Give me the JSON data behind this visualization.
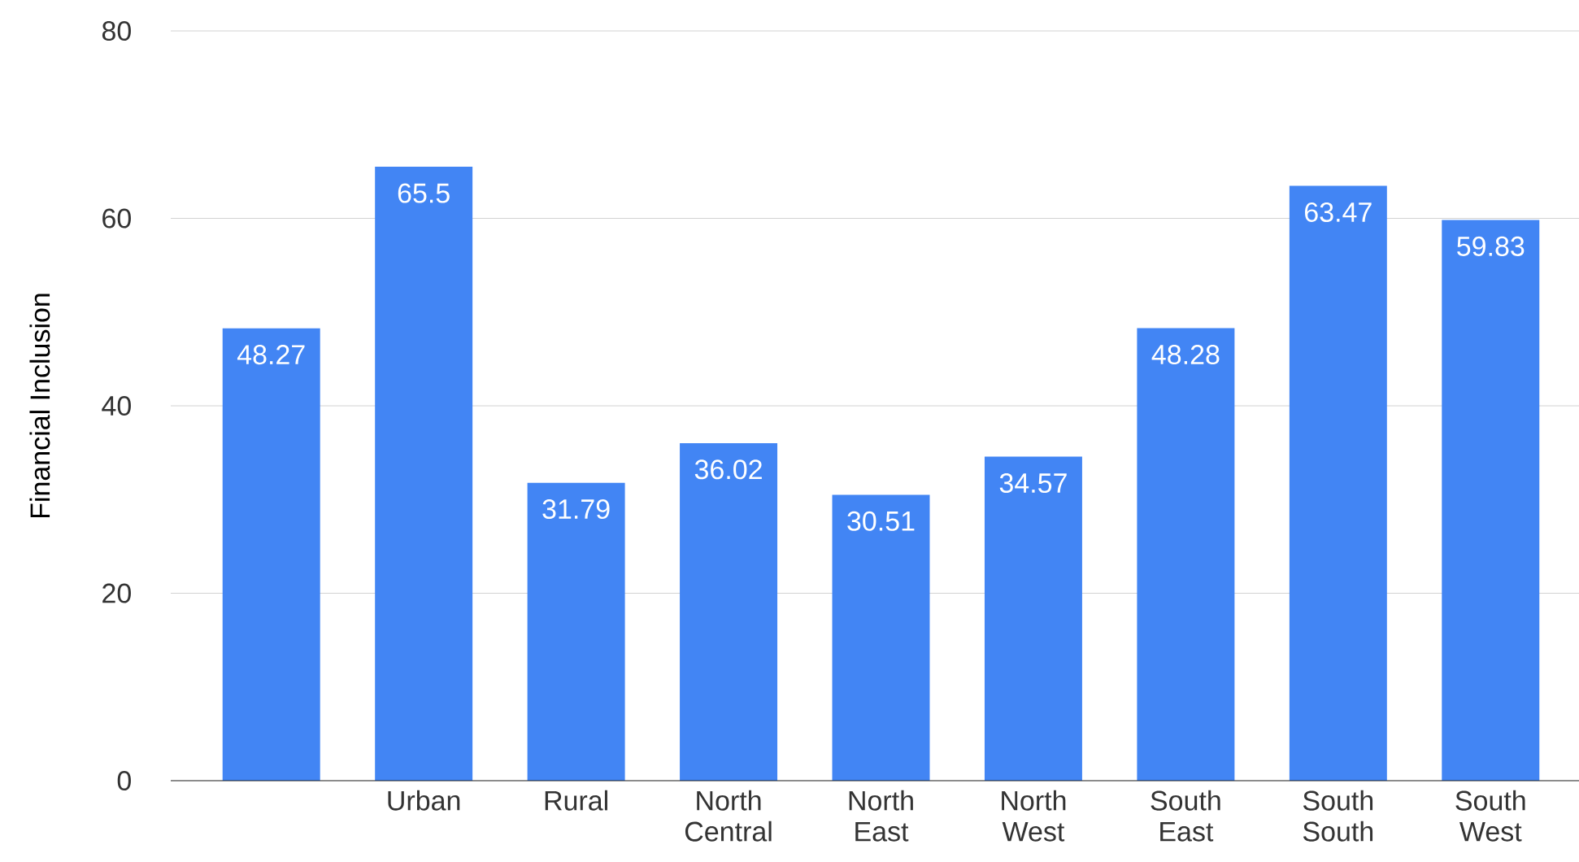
{
  "chart_data": {
    "type": "bar",
    "ylabel": "Financial Inclusion",
    "categories": [
      null,
      "Urban",
      "Rural",
      "North Central",
      "North East",
      "North West",
      "South East",
      "South South",
      "South West"
    ],
    "values": [
      48.27,
      65.5,
      31.79,
      36.02,
      30.51,
      34.57,
      48.28,
      63.47,
      59.83
    ],
    "color": "#4285f4",
    "ylim": [
      0,
      80
    ],
    "yticks": [
      0,
      20,
      40,
      60,
      80
    ],
    "grid": "y",
    "data_labels": true
  }
}
